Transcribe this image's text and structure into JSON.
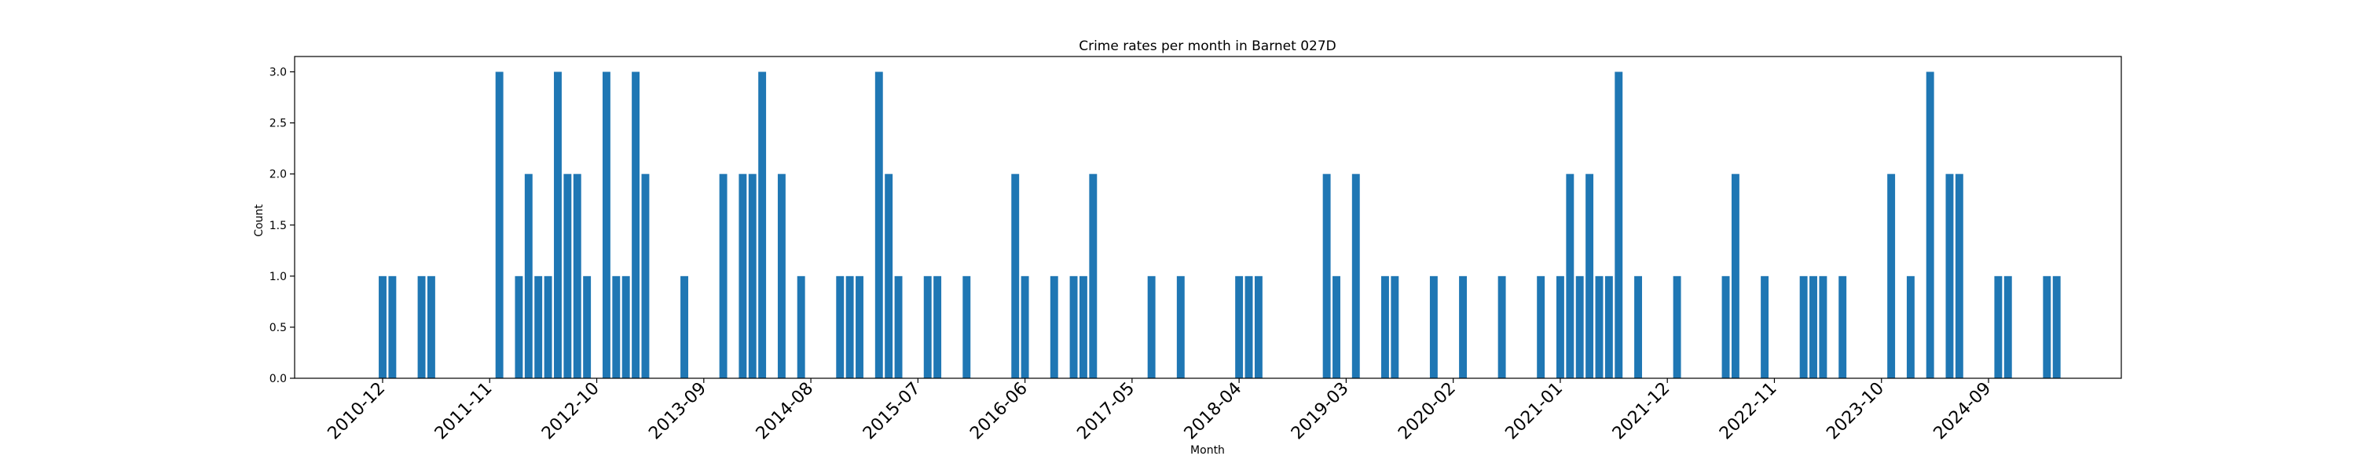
{
  "chart_data": {
    "type": "bar",
    "title": "Crime rates per month in Barnet 027D",
    "xlabel": "Month",
    "ylabel": "Count",
    "ylim": [
      0,
      3.15
    ],
    "y_ticks": [
      0.0,
      0.5,
      1.0,
      1.5,
      2.0,
      2.5,
      3.0
    ],
    "x_ticks": [
      "2010-12",
      "2011-11",
      "2012-10",
      "2013-09",
      "2014-08",
      "2015-07",
      "2016-06",
      "2017-05",
      "2018-04",
      "2019-03",
      "2020-02",
      "2021-01",
      "2021-12",
      "2022-11",
      "2023-10",
      "2024-09"
    ],
    "grid": false,
    "bar_color": "#1f77b4",
    "x": [
      "2010-12",
      "2011-01",
      "2011-04",
      "2011-05",
      "2011-12",
      "2012-02",
      "2012-03",
      "2012-04",
      "2012-05",
      "2012-06",
      "2012-07",
      "2012-08",
      "2012-09",
      "2012-11",
      "2012-12",
      "2013-01",
      "2013-02",
      "2013-03",
      "2013-07",
      "2013-11",
      "2014-01",
      "2014-02",
      "2014-03",
      "2014-05",
      "2014-07",
      "2014-11",
      "2014-12",
      "2015-01",
      "2015-03",
      "2015-04",
      "2015-05",
      "2015-08",
      "2015-09",
      "2015-12",
      "2016-05",
      "2016-06",
      "2016-09",
      "2016-11",
      "2016-12",
      "2017-01",
      "2017-07",
      "2017-10",
      "2018-04",
      "2018-05",
      "2018-06",
      "2019-01",
      "2019-02",
      "2019-04",
      "2019-07",
      "2019-08",
      "2019-12",
      "2020-03",
      "2020-07",
      "2020-11",
      "2021-01",
      "2021-02",
      "2021-03",
      "2021-04",
      "2021-05",
      "2021-06",
      "2021-07",
      "2021-09",
      "2022-01",
      "2022-06",
      "2022-07",
      "2022-10",
      "2023-02",
      "2023-03",
      "2023-04",
      "2023-06",
      "2023-11",
      "2024-01",
      "2024-03",
      "2024-05",
      "2024-06",
      "2024-10",
      "2024-11",
      "2025-03",
      "2025-04"
    ],
    "values": [
      1,
      1,
      1,
      1,
      3,
      1,
      2,
      1,
      1,
      3,
      2,
      2,
      1,
      3,
      1,
      1,
      3,
      2,
      1,
      2,
      2,
      2,
      3,
      2,
      1,
      1,
      1,
      1,
      3,
      2,
      1,
      1,
      1,
      1,
      2,
      1,
      1,
      1,
      1,
      2,
      1,
      1,
      1,
      1,
      1,
      2,
      1,
      2,
      1,
      1,
      1,
      1,
      1,
      1,
      1,
      2,
      1,
      2,
      1,
      1,
      3,
      1,
      1,
      1,
      2,
      1,
      1,
      1,
      1,
      1,
      2,
      1,
      3,
      2,
      2,
      1,
      1,
      1,
      1
    ]
  }
}
